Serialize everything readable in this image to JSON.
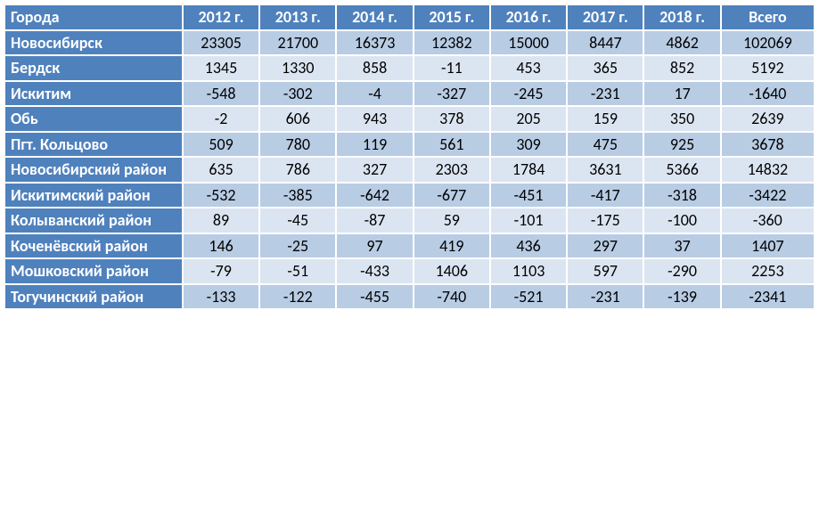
{
  "colors": {
    "header_bg": "#4f81bd",
    "header_fg": "#ffffff",
    "row_a": "#b8cce4",
    "row_b": "#dbe5f1",
    "cell_fg": "#000000"
  },
  "table": {
    "type": "table",
    "row_header_label": "Города",
    "year_columns": [
      "2012 г.",
      "2013 г.",
      "2014 г.",
      "2015 г.",
      "2016 г.",
      "2017 г.",
      "2018 г."
    ],
    "total_column": "Всего",
    "font_size_pt": 14,
    "cell_align": "center",
    "label_align": "left",
    "rows": [
      {
        "label": "Новосибирск",
        "values": [
          23305,
          21700,
          16373,
          12382,
          15000,
          8447,
          4862
        ],
        "total": 102069
      },
      {
        "label": "Бердск",
        "values": [
          1345,
          1330,
          858,
          -11,
          453,
          365,
          852
        ],
        "total": 5192
      },
      {
        "label": "Искитим",
        "values": [
          -548,
          -302,
          -4,
          -327,
          -245,
          -231,
          17
        ],
        "total": -1640
      },
      {
        "label": "Обь",
        "values": [
          -2,
          606,
          943,
          378,
          205,
          159,
          350
        ],
        "total": 2639
      },
      {
        "label": "Пгт. Кольцово",
        "values": [
          509,
          780,
          119,
          561,
          309,
          475,
          925
        ],
        "total": 3678
      },
      {
        "label": "Новосибирский район",
        "values": [
          635,
          786,
          327,
          2303,
          1784,
          3631,
          5366
        ],
        "total": 14832
      },
      {
        "label": "Искитимский район",
        "values": [
          -532,
          -385,
          -642,
          -677,
          -451,
          -417,
          -318
        ],
        "total": -3422
      },
      {
        "label": "Колыванский район",
        "values": [
          89,
          -45,
          -87,
          59,
          -101,
          -175,
          -100
        ],
        "total": -360
      },
      {
        "label": "Коченёвский район",
        "values": [
          146,
          -25,
          97,
          419,
          436,
          297,
          37
        ],
        "total": 1407
      },
      {
        "label": "Мошковский район",
        "values": [
          -79,
          -51,
          -433,
          1406,
          1103,
          597,
          -290
        ],
        "total": 2253
      },
      {
        "label": "Тогучинский район",
        "values": [
          -133,
          -122,
          -455,
          -740,
          -521,
          -231,
          -139
        ],
        "total": -2341
      }
    ]
  }
}
